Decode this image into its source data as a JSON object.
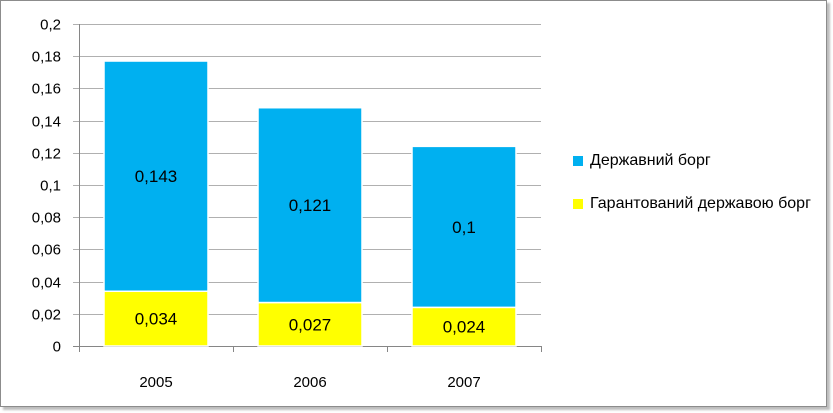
{
  "chart_data": {
    "type": "bar",
    "stacked": true,
    "categories": [
      "2005",
      "2006",
      "2007"
    ],
    "series": [
      {
        "name": "Гарантований державою борг",
        "values": [
          0.034,
          0.027,
          0.024
        ],
        "labels": [
          "0,034",
          "0,027",
          "0,024"
        ],
        "color": "#ffff00"
      },
      {
        "name": "Державний борг",
        "values": [
          0.143,
          0.121,
          0.1
        ],
        "labels": [
          "0,143",
          "0,121",
          "0,1"
        ],
        "color": "#00b0f0"
      }
    ],
    "ylim": [
      0,
      0.2
    ],
    "yticks": [
      0,
      0.02,
      0.04,
      0.06,
      0.08,
      0.1,
      0.12,
      0.14,
      0.16,
      0.18,
      0.2
    ],
    "ytick_labels": [
      "0",
      "0,02",
      "0,04",
      "0,06",
      "0,08",
      "0,1",
      "0,12",
      "0,14",
      "0,16",
      "0,18",
      "0,2"
    ],
    "grid": true,
    "legend_position": "right",
    "legend_order": [
      "Державний борг",
      "Гарантований державою борг"
    ],
    "title": "",
    "xlabel": "",
    "ylabel": ""
  }
}
